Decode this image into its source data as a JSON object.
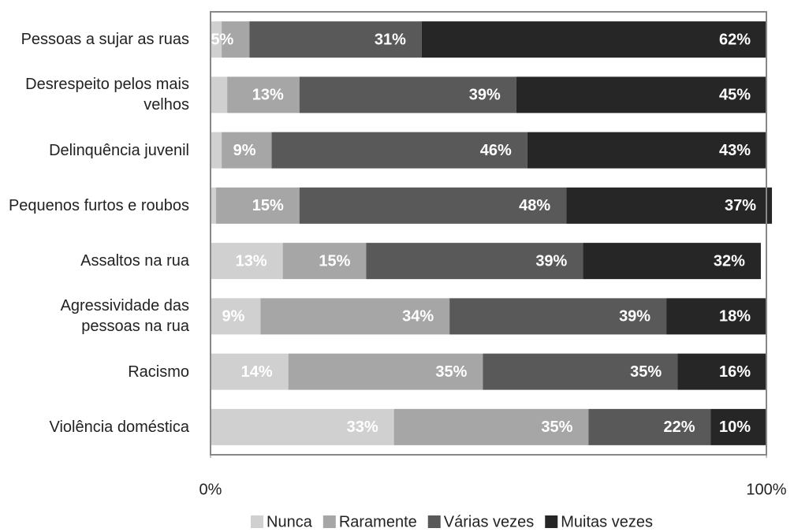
{
  "chart_data": {
    "type": "stacked-barh",
    "categories": [
      "Pessoas a sujar as ruas",
      "Desrespeito pelos mais velhos",
      "Delinquência juvenil",
      "Pequenos furtos e roubos",
      "Assaltos na rua",
      "Agressividade das pessoas na rua",
      "Racismo",
      "Violência doméstica"
    ],
    "series": [
      {
        "name": "Nunca",
        "color": "#d0d0d0",
        "values": [
          2,
          3,
          2,
          1,
          13,
          9,
          14,
          33
        ],
        "value_labels": [
          null,
          null,
          null,
          null,
          "13%",
          "9%",
          "14%",
          "33%"
        ]
      },
      {
        "name": "Raramente",
        "color": "#a6a6a6",
        "values": [
          5,
          13,
          9,
          15,
          15,
          34,
          35,
          35
        ],
        "value_labels": [
          "5%",
          "13%",
          "9%",
          "15%",
          "15%",
          "34%",
          "35%",
          "35%"
        ]
      },
      {
        "name": "Várias vezes",
        "color": "#595959",
        "values": [
          31,
          39,
          46,
          48,
          39,
          39,
          35,
          22
        ],
        "value_labels": [
          "31%",
          "39%",
          "46%",
          "48%",
          "39%",
          "39%",
          "35%",
          "22%"
        ]
      },
      {
        "name": "Muitas vezes",
        "color": "#262626",
        "values": [
          62,
          45,
          43,
          37,
          32,
          18,
          16,
          10
        ],
        "value_labels": [
          "62%",
          "45%",
          "43%",
          "37%",
          "32%",
          "18%",
          "16%",
          "10%"
        ]
      }
    ],
    "xlim": [
      0,
      100
    ],
    "xticks": [
      {
        "value": 0,
        "label": "0%"
      },
      {
        "value": 100,
        "label": "100%"
      }
    ],
    "grid": false,
    "legend": "bottom"
  }
}
